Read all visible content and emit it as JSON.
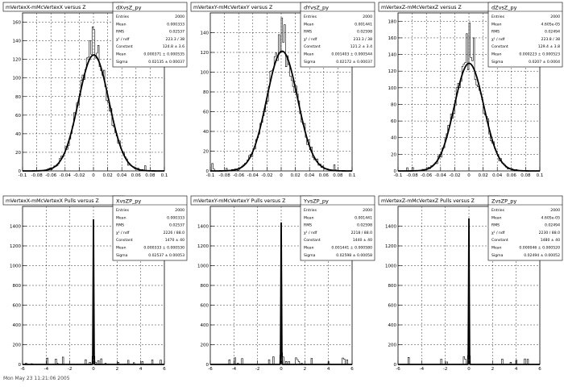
{
  "chart_data": [
    {
      "type": "histogram",
      "title": "mVertexX-mMcVertexX versus Z",
      "name": "dXvsZ_py",
      "stats": [
        {
          "label": "Entries",
          "value": "2000"
        },
        {
          "label": "Mean",
          "value": "0.000333"
        },
        {
          "label": "RMS",
          "value": "0.02537"
        },
        {
          "label": "χ² / ndf",
          "value": "223.3 / 38"
        },
        {
          "label": "Constant",
          "value": "124.8 ± 3.6"
        },
        {
          "label": "Mean",
          "value": "0.000371 ± 0.000535"
        },
        {
          "label": "Sigma",
          "value": "0.02135 ± 0.00037"
        }
      ],
      "xlim": [
        -0.1,
        0.1
      ],
      "ylim": [
        0,
        170
      ],
      "xticks": [
        "-0.1",
        "-0.08",
        "-0.06",
        "-0.04",
        "-0.02",
        "0",
        "0.02",
        "0.04",
        "0.06",
        "0.08",
        "0.1"
      ],
      "yticks": [
        "0",
        "20",
        "40",
        "60",
        "80",
        "100",
        "120",
        "140",
        "160"
      ],
      "fit": {
        "constant": 124.8,
        "mean": 0.000371,
        "sigma": 0.02135
      },
      "peak_spikes": [
        {
          "x": -0.0015,
          "y": 155
        },
        {
          "x": 0.002,
          "y": 152
        },
        {
          "x": -0.006,
          "y": 140
        },
        {
          "x": 0.007,
          "y": 135
        }
      ]
    },
    {
      "type": "histogram",
      "title": "mVertexY-mMcVertexY versus Z",
      "name": "dYvsZ_py",
      "stats": [
        {
          "label": "Entries",
          "value": "2000"
        },
        {
          "label": "Mean",
          "value": "0.001441"
        },
        {
          "label": "RMS",
          "value": "0.02598"
        },
        {
          "label": "χ² / ndf",
          "value": "233.3 / 38"
        },
        {
          "label": "Constant",
          "value": "121.2 ± 3.4"
        },
        {
          "label": "Mean",
          "value": "0.001403 ± 0.000544"
        },
        {
          "label": "Sigma",
          "value": "0.02172 ± 0.00037"
        }
      ],
      "xlim": [
        -0.1,
        0.1
      ],
      "ylim": [
        0,
        160
      ],
      "xticks": [
        "-0.1",
        "-0.08",
        "-0.06",
        "-0.04",
        "-0.02",
        "0",
        "0.02",
        "0.04",
        "0.06",
        "0.08",
        "0.1"
      ],
      "yticks": [
        "0",
        "20",
        "40",
        "60",
        "80",
        "100",
        "120",
        "140"
      ],
      "fit": {
        "constant": 121.2,
        "mean": 0.001403,
        "sigma": 0.02172
      },
      "peak_spikes": [
        {
          "x": 0.001,
          "y": 155
        },
        {
          "x": 0.005,
          "y": 148
        },
        {
          "x": -0.004,
          "y": 138
        }
      ]
    },
    {
      "type": "histogram",
      "title": "mVertexZ-mMcVertexZ versus Z",
      "name": "dZvsZ_py",
      "stats": [
        {
          "label": "Entries",
          "value": "2000"
        },
        {
          "label": "Mean",
          "value": "4.605e-05"
        },
        {
          "label": "RMS",
          "value": "0.02494"
        },
        {
          "label": "χ² / ndf",
          "value": "223.8 / 38"
        },
        {
          "label": "Constant",
          "value": "129.4 ± 3.8"
        },
        {
          "label": "Mean",
          "value": "0.000223 ± 0.000523"
        },
        {
          "label": "Sigma",
          "value": "0.0207 ± 0.0004"
        }
      ],
      "xlim": [
        -0.1,
        0.1
      ],
      "ylim": [
        0,
        190
      ],
      "xticks": [
        "-0.1",
        "-0.08",
        "-0.06",
        "-0.04",
        "-0.02",
        "0",
        "0.02",
        "0.04",
        "0.06",
        "0.08",
        "0.1"
      ],
      "yticks": [
        "0",
        "20",
        "40",
        "60",
        "80",
        "100",
        "120",
        "140",
        "160",
        "180"
      ],
      "fit": {
        "constant": 129.4,
        "mean": 0.000223,
        "sigma": 0.0207
      },
      "peak_spikes": [
        {
          "x": 0.001,
          "y": 178
        },
        {
          "x": -0.003,
          "y": 165
        },
        {
          "x": 0.006,
          "y": 160
        }
      ]
    },
    {
      "type": "histogram",
      "title": "mVertexX-mMcVertexX Pulls versus Z",
      "name": "XvsZP_py",
      "stats": [
        {
          "label": "Entries",
          "value": "2000"
        },
        {
          "label": "Mean",
          "value": "0.000333"
        },
        {
          "label": "RMS",
          "value": "0.02537"
        },
        {
          "label": "χ² / ndf",
          "value": "2226 / 88.0"
        },
        {
          "label": "Constant",
          "value": "1470 ± 40"
        },
        {
          "label": "Mean",
          "value": "0.000333 ± 0.000530"
        },
        {
          "label": "Sigma",
          "value": "0.02537 ± 0.00053"
        }
      ],
      "xlim": [
        -6,
        6
      ],
      "ylim": [
        0,
        1600
      ],
      "xticks": [
        "-6",
        "-4",
        "-2",
        "0",
        "2",
        "4",
        "6"
      ],
      "yticks": [
        "0",
        "200",
        "400",
        "600",
        "800",
        "1000",
        "1200",
        "1400"
      ],
      "fit": {
        "constant": 1470,
        "mean": 0.0,
        "sigma": 0.0254
      }
    },
    {
      "type": "histogram",
      "title": "mVertexY-mMcVertexY Pulls versus Z",
      "name": "YvsZP_py",
      "stats": [
        {
          "label": "Entries",
          "value": "2000"
        },
        {
          "label": "Mean",
          "value": "0.001441"
        },
        {
          "label": "RMS",
          "value": "0.02598"
        },
        {
          "label": "χ² / ndf",
          "value": "2218 / 88.0"
        },
        {
          "label": "Constant",
          "value": "1440 ± 40"
        },
        {
          "label": "Mean",
          "value": "0.001441 ± 0.000580"
        },
        {
          "label": "Sigma",
          "value": "0.02598 ± 0.00058"
        }
      ],
      "xlim": [
        -6,
        6
      ],
      "ylim": [
        0,
        1600
      ],
      "xticks": [
        "-6",
        "-4",
        "-2",
        "0",
        "2",
        "4",
        "6"
      ],
      "yticks": [
        "0",
        "200",
        "400",
        "600",
        "800",
        "1000",
        "1200",
        "1400"
      ],
      "fit": {
        "constant": 1440,
        "mean": 0.0014,
        "sigma": 0.026
      }
    },
    {
      "type": "histogram",
      "title": "mVertexZ-mMcVertexZ Pulls versus Z",
      "name": "ZvsZP_py",
      "stats": [
        {
          "label": "Entries",
          "value": "2000"
        },
        {
          "label": "Mean",
          "value": "4.605e-05"
        },
        {
          "label": "RMS",
          "value": "0.02494"
        },
        {
          "label": "χ² / ndf",
          "value": "2230 / 88.0"
        },
        {
          "label": "Constant",
          "value": "1480 ± 40"
        },
        {
          "label": "Mean",
          "value": "0.000046 ± 0.000520"
        },
        {
          "label": "Sigma",
          "value": "0.02494 ± 0.00052"
        }
      ],
      "xlim": [
        -6,
        6
      ],
      "ylim": [
        0,
        1600
      ],
      "xticks": [
        "-6",
        "-4",
        "-2",
        "0",
        "2",
        "4",
        "6"
      ],
      "yticks": [
        "0",
        "200",
        "400",
        "600",
        "800",
        "1000",
        "1200",
        "1400"
      ],
      "fit": {
        "constant": 1480,
        "mean": 0.0,
        "sigma": 0.025
      }
    }
  ],
  "footer": "Mon May 23 11:21:06 2005"
}
